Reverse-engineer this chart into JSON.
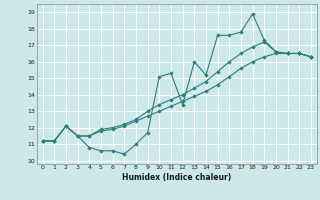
{
  "xlabel": "Humidex (Indice chaleur)",
  "bg_color": "#cce8e8",
  "grid_color": "#ffffff",
  "line_color": "#2d7d7d",
  "xlim": [
    -0.5,
    23.5
  ],
  "ylim": [
    9.8,
    19.5
  ],
  "xticks": [
    0,
    1,
    2,
    3,
    4,
    5,
    6,
    7,
    8,
    9,
    10,
    11,
    12,
    13,
    14,
    15,
    16,
    17,
    18,
    19,
    20,
    21,
    22,
    23
  ],
  "yticks": [
    10,
    11,
    12,
    13,
    14,
    15,
    16,
    17,
    18,
    19
  ],
  "line1_x": [
    0,
    1,
    2,
    3,
    4,
    5,
    6,
    7,
    8,
    9,
    10,
    11,
    12,
    13,
    14,
    15,
    16,
    17,
    18,
    19,
    20,
    21,
    22,
    23
  ],
  "line1_y": [
    11.2,
    11.2,
    12.1,
    11.5,
    10.8,
    10.6,
    10.6,
    10.4,
    11.0,
    11.7,
    15.1,
    15.3,
    13.4,
    16.0,
    15.2,
    17.6,
    17.6,
    17.8,
    18.9,
    17.3,
    16.6,
    16.5,
    16.5,
    16.3
  ],
  "line2_x": [
    0,
    1,
    2,
    3,
    4,
    5,
    6,
    7,
    8,
    9,
    10,
    11,
    12,
    13,
    14,
    15,
    16,
    17,
    18,
    19,
    20,
    21,
    22,
    23
  ],
  "line2_y": [
    11.2,
    11.2,
    12.1,
    11.5,
    11.5,
    11.9,
    12.0,
    12.2,
    12.5,
    13.0,
    13.4,
    13.7,
    14.0,
    14.4,
    14.8,
    15.4,
    16.0,
    16.5,
    16.9,
    17.2,
    16.6,
    16.5,
    16.5,
    16.3
  ],
  "line3_x": [
    0,
    1,
    2,
    3,
    4,
    5,
    6,
    7,
    8,
    9,
    10,
    11,
    12,
    13,
    14,
    15,
    16,
    17,
    18,
    19,
    20,
    21,
    22,
    23
  ],
  "line3_y": [
    11.2,
    11.2,
    12.1,
    11.5,
    11.5,
    11.8,
    11.9,
    12.1,
    12.4,
    12.7,
    13.0,
    13.3,
    13.6,
    13.9,
    14.2,
    14.6,
    15.1,
    15.6,
    16.0,
    16.3,
    16.5,
    16.5,
    16.5,
    16.3
  ]
}
